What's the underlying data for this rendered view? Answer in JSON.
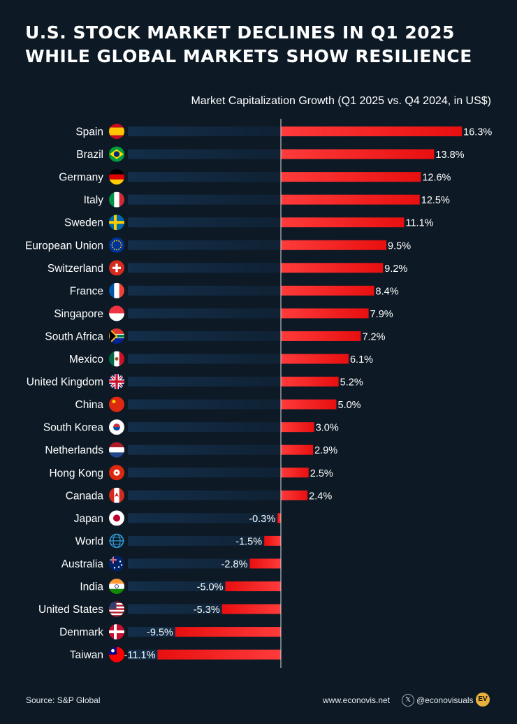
{
  "header": {
    "title_line1": "U.S. STOCK MARKET DECLINES IN Q1 2025",
    "title_line2": "WHILE GLOBAL MARKETS SHOW RESILIENCE"
  },
  "colors": {
    "background": "#0d1a26",
    "bar": "#ff2a2a",
    "track": "#14304d",
    "text": "#ffffff"
  },
  "chart_data": {
    "type": "bar",
    "orientation": "horizontal",
    "title": "U.S. STOCK MARKET DECLINES IN Q1 2025 WHILE GLOBAL MARKETS SHOW RESILIENCE",
    "subtitle": "Market Capitalization Growth (Q1 2025 vs. Q4 2024, in US$)",
    "xlabel": "",
    "ylabel": "",
    "unit": "%",
    "xlim": [
      -11.1,
      16.3
    ],
    "categories": [
      "Spain",
      "Brazil",
      "Germany",
      "Italy",
      "Sweden",
      "European Union",
      "Switzerland",
      "France",
      "Singapore",
      "South Africa",
      "Mexico",
      "United Kingdom",
      "China",
      "South Korea",
      "Netherlands",
      "Hong Kong",
      "Canada",
      "Japan",
      "World",
      "Australia",
      "India",
      "United States",
      "Denmark",
      "Taiwan"
    ],
    "values": [
      16.3,
      13.8,
      12.6,
      12.5,
      11.1,
      9.5,
      9.2,
      8.4,
      7.9,
      7.2,
      6.1,
      5.2,
      5.0,
      3.0,
      2.9,
      2.5,
      2.4,
      -0.3,
      -1.5,
      -2.8,
      -5.0,
      -5.3,
      -9.5,
      -11.1
    ],
    "labels": [
      "16.3%",
      "13.8%",
      "12.6%",
      "12.5%",
      "11.1%",
      "9.5%",
      "9.2%",
      "8.4%",
      "7.9%",
      "7.2%",
      "6.1%",
      "5.2%",
      "5.0%",
      "3.0%",
      "2.9%",
      "2.5%",
      "2.4%",
      "-0.3%",
      "-1.5%",
      "-2.8%",
      "-5.0%",
      "-5.3%",
      "-9.5%",
      "-11.1%"
    ],
    "flags": [
      "spain-flag-icon",
      "brazil-flag-icon",
      "germany-flag-icon",
      "italy-flag-icon",
      "sweden-flag-icon",
      "eu-flag-icon",
      "switzerland-flag-icon",
      "france-flag-icon",
      "singapore-flag-icon",
      "south-africa-flag-icon",
      "mexico-flag-icon",
      "uk-flag-icon",
      "china-flag-icon",
      "south-korea-flag-icon",
      "netherlands-flag-icon",
      "hong-kong-flag-icon",
      "canada-flag-icon",
      "japan-flag-icon",
      "globe-icon",
      "australia-flag-icon",
      "india-flag-icon",
      "usa-flag-icon",
      "denmark-flag-icon",
      "taiwan-flag-icon"
    ]
  },
  "footer": {
    "source": "Source: S&P Global",
    "website": "www.econovis.net",
    "x_icon": "x-logo-icon",
    "handle": "@econovisuals",
    "logo_text": "EV"
  }
}
